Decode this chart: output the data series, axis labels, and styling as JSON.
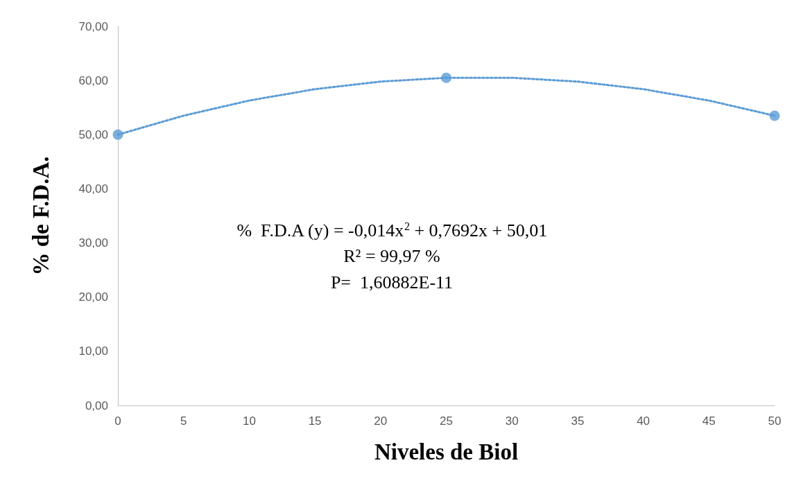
{
  "chart_data": {
    "type": "scatter",
    "xlabel": "Niveles de Biol",
    "ylabel": "% de F.D.A.",
    "xlim": [
      0,
      50
    ],
    "xticks": [
      0,
      5,
      10,
      15,
      20,
      25,
      30,
      35,
      40,
      45,
      50
    ],
    "ylim": [
      0,
      70
    ],
    "yticks": [
      {
        "value": 0,
        "label": "0,00"
      },
      {
        "value": 10,
        "label": "10,00"
      },
      {
        "value": 20,
        "label": "20,00"
      },
      {
        "value": 30,
        "label": "30,00"
      },
      {
        "value": 40,
        "label": "40,00"
      },
      {
        "value": 50,
        "label": "50,00"
      },
      {
        "value": 60,
        "label": "60,00"
      },
      {
        "value": 70,
        "label": "70,00"
      }
    ],
    "grid": false,
    "series": [
      {
        "color": "#5b9bd5",
        "marker": "circle",
        "x": [
          0,
          25,
          50
        ],
        "values": [
          50.0,
          60.5,
          53.5
        ]
      },
      {
        "type": "line",
        "color": "#5b9bd5",
        "marker": "none",
        "line_style": "dotted",
        "x": [
          0,
          5,
          10,
          15,
          20,
          25,
          30,
          35,
          40,
          45,
          50
        ],
        "values": [
          50.0,
          53.5,
          56.3,
          58.4,
          59.8,
          60.5,
          60.5,
          59.8,
          58.4,
          56.3,
          53.5
        ]
      }
    ],
    "annotations": [
      "%  F.D.A (y) = -0,014x$^{2}$ + 0,7692x + 50,01",
      "R² = 99,97 %",
      "P=  1,60882E-11"
    ]
  }
}
